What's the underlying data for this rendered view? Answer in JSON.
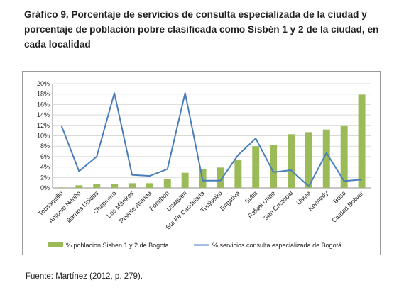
{
  "title": "Gráfico 9. Porcentaje de servicios de consulta especializada de la ciudad y porcentaje de población pobre clasificada como Sisbén 1 y 2 de la ciudad, en cada localidad",
  "source": "Fuente: Martínez (2012, p. 279).",
  "chart_data": {
    "type": "bar",
    "categories": [
      "Teusaquillo",
      "Antonio Nariño",
      "Barrios Unidos",
      "Chapinero",
      "Los Mártires",
      "Puente Aranda",
      "Fontibón",
      "Usaquen",
      "Sta Fe Candelaria",
      "Tunjuelito",
      "Engativá",
      "Suba",
      "Rafael Uribe",
      "San Cristobal",
      "Usme",
      "Kennedy",
      "Bosa",
      "Ciudad Bolivar"
    ],
    "series": [
      {
        "name": "% poblacion Sisben 1 y 2 de Bogota",
        "type": "bar",
        "color": "#9bbb59",
        "values": [
          0.1,
          0.5,
          0.7,
          0.8,
          0.9,
          0.9,
          1.7,
          2.9,
          3.6,
          3.9,
          5.3,
          8.0,
          8.2,
          10.3,
          10.7,
          11.2,
          12.0,
          17.9
        ]
      },
      {
        "name": "% servicios consulta especializada de Bogotá",
        "type": "line",
        "color": "#4a7ebb",
        "values": [
          12.0,
          3.2,
          6.0,
          18.2,
          2.5,
          2.3,
          3.6,
          18.2,
          1.4,
          1.4,
          6.3,
          9.5,
          3.0,
          3.4,
          0.3,
          6.7,
          1.3,
          1.6
        ]
      }
    ],
    "yticks": [
      "0%",
      "2%",
      "4%",
      "6%",
      "8%",
      "10%",
      "12%",
      "14%",
      "16%",
      "18%",
      "20%"
    ],
    "ylim": [
      0,
      20
    ],
    "grid": true,
    "legend": "bottom"
  }
}
